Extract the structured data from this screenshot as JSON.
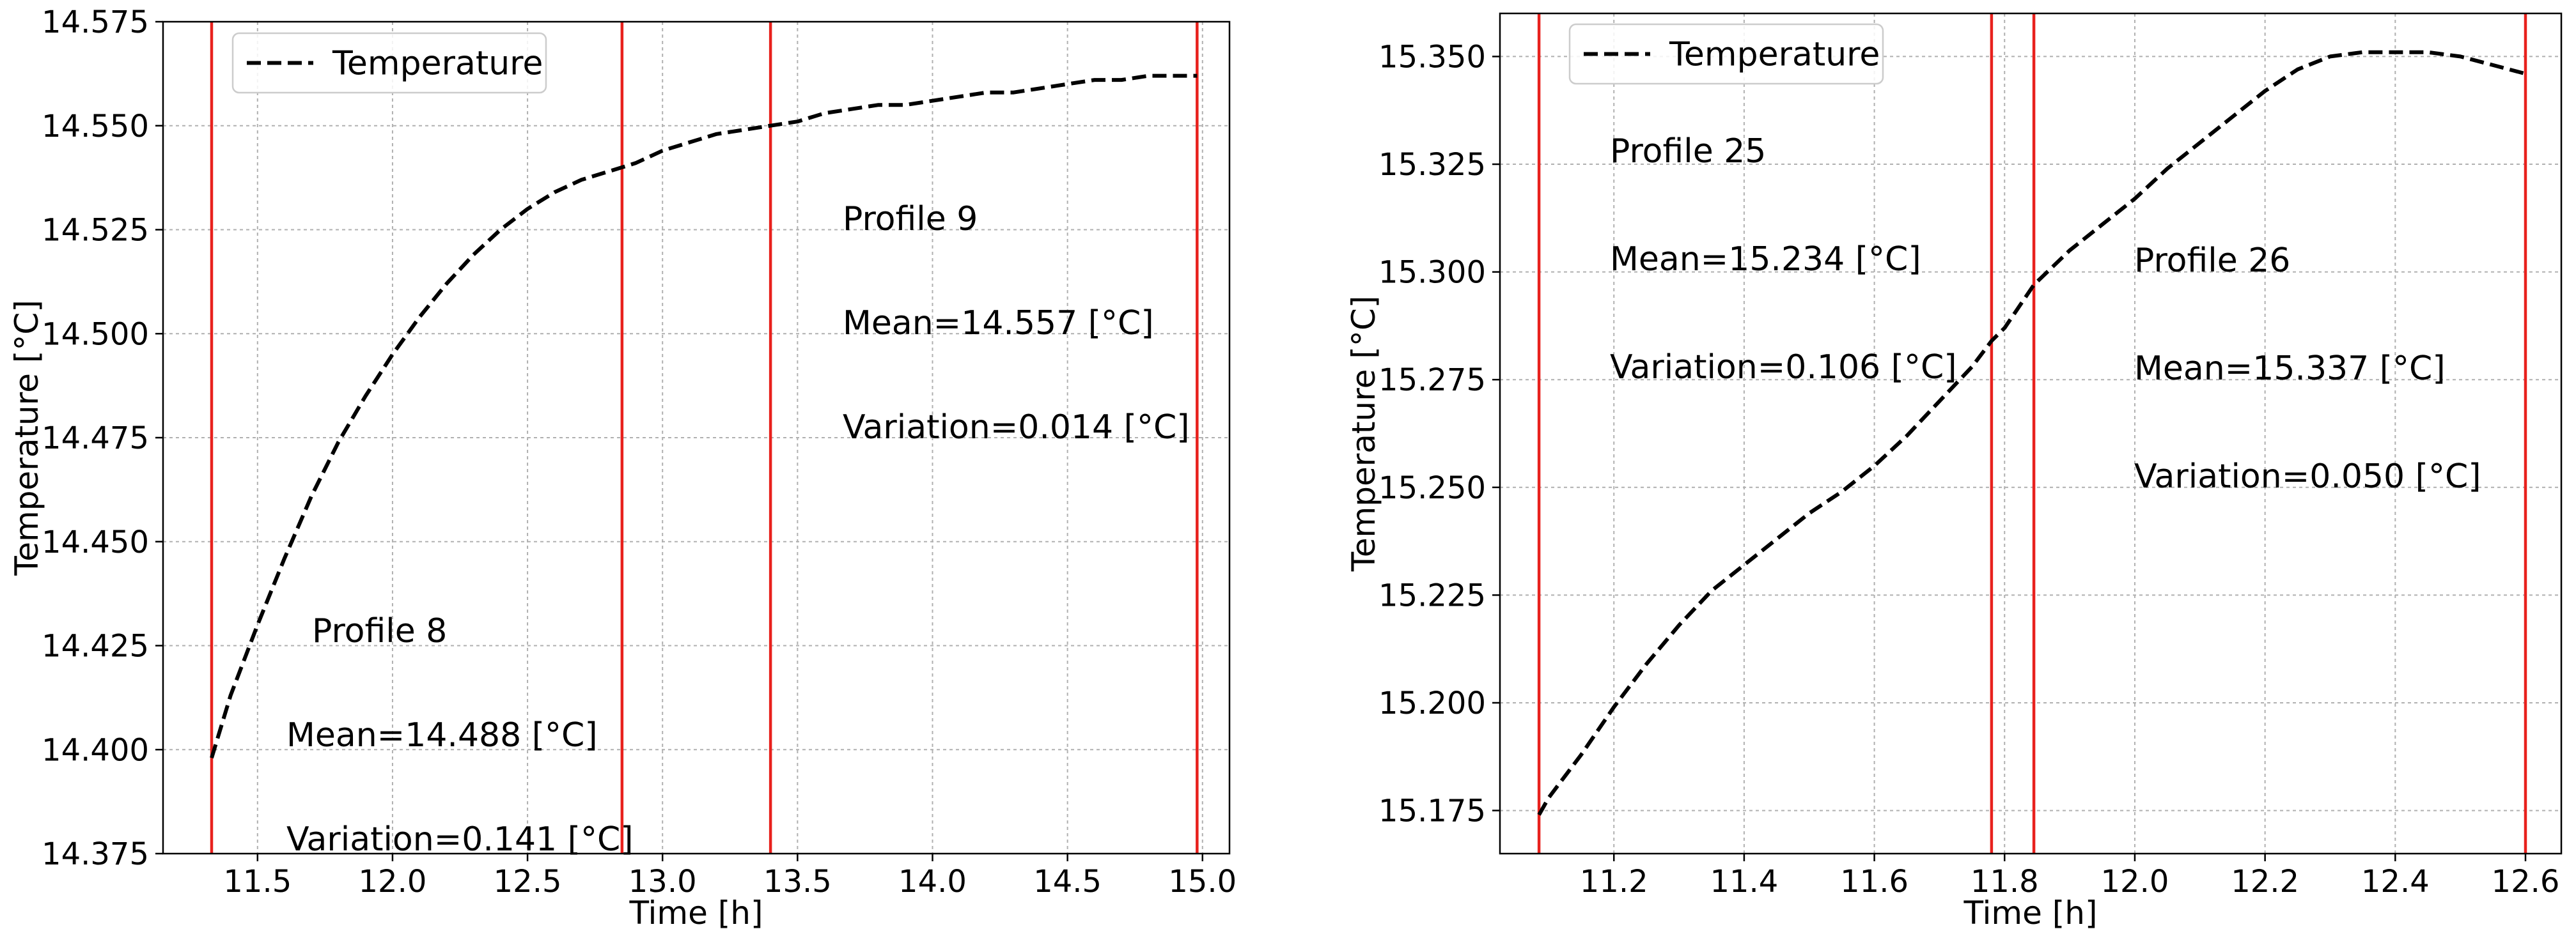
{
  "chart_data": [
    {
      "type": "line",
      "xlabel": "Time [h]",
      "ylabel": "Temperature [°C]",
      "xlim": [
        11.15,
        15.1
      ],
      "ylim": [
        14.375,
        14.575
      ],
      "xticks": [
        11.5,
        12.0,
        12.5,
        13.0,
        13.5,
        14.0,
        14.5,
        15.0
      ],
      "xtick_labels": [
        "11.5",
        "12.0",
        "12.5",
        "13.0",
        "13.5",
        "14.0",
        "14.5",
        "15.0"
      ],
      "yticks": [
        14.375,
        14.4,
        14.425,
        14.45,
        14.475,
        14.5,
        14.525,
        14.55,
        14.575
      ],
      "ytick_labels": [
        "14.375",
        "14.400",
        "14.425",
        "14.450",
        "14.475",
        "14.500",
        "14.525",
        "14.550",
        "14.575"
      ],
      "grid": true,
      "legend": {
        "entries": [
          "Temperature"
        ],
        "location": "upper left"
      },
      "series": [
        {
          "name": "Temperature",
          "style": "dashed",
          "color": "#000000",
          "x": [
            11.33,
            11.4,
            11.5,
            11.6,
            11.7,
            11.8,
            11.9,
            12.0,
            12.1,
            12.2,
            12.3,
            12.4,
            12.5,
            12.6,
            12.7,
            12.8,
            12.85,
            12.9,
            13.0,
            13.1,
            13.2,
            13.3,
            13.4,
            13.5,
            13.6,
            13.7,
            13.8,
            13.9,
            14.0,
            14.1,
            14.2,
            14.3,
            14.4,
            14.5,
            14.6,
            14.7,
            14.8,
            14.9,
            14.98
          ],
          "y": [
            14.398,
            14.413,
            14.43,
            14.446,
            14.461,
            14.474,
            14.485,
            14.495,
            14.504,
            14.512,
            14.519,
            14.525,
            14.53,
            14.534,
            14.537,
            14.539,
            14.54,
            14.541,
            14.544,
            14.546,
            14.548,
            14.549,
            14.55,
            14.551,
            14.553,
            14.554,
            14.555,
            14.555,
            14.556,
            14.557,
            14.558,
            14.558,
            14.559,
            14.56,
            14.561,
            14.561,
            14.562,
            14.562,
            14.562
          ]
        }
      ],
      "vertical_lines": {
        "color": "#e8211d",
        "x": [
          11.33,
          12.85,
          13.4,
          14.98
        ]
      },
      "annotations": [
        {
          "lines": [
            "Profile 8",
            "Mean=14.488 [°C]",
            "Variation=0.141 [°C]"
          ]
        },
        {
          "lines": [
            "Profile 9",
            "Mean=14.557 [°C]",
            "Variation=0.014 [°C]"
          ]
        }
      ]
    },
    {
      "type": "line",
      "xlabel": "Time [h]",
      "ylabel": "Temperature [°C]",
      "xlim": [
        11.025,
        12.655
      ],
      "ylim": [
        15.165,
        15.36
      ],
      "xticks": [
        11.2,
        11.4,
        11.6,
        11.8,
        12.0,
        12.2,
        12.4,
        12.6
      ],
      "xtick_labels": [
        "11.2",
        "11.4",
        "11.6",
        "11.8",
        "12.0",
        "12.2",
        "12.4",
        "12.6"
      ],
      "yticks": [
        15.175,
        15.2,
        15.225,
        15.25,
        15.275,
        15.3,
        15.325,
        15.35
      ],
      "ytick_labels": [
        "15.175",
        "15.200",
        "15.225",
        "15.250",
        "15.275",
        "15.300",
        "15.325",
        "15.350"
      ],
      "grid": true,
      "legend": {
        "entries": [
          "Temperature"
        ],
        "location": "upper left"
      },
      "series": [
        {
          "name": "Temperature",
          "style": "dashed",
          "color": "#000000",
          "x": [
            11.085,
            11.1,
            11.15,
            11.2,
            11.25,
            11.3,
            11.35,
            11.4,
            11.45,
            11.5,
            11.55,
            11.6,
            11.65,
            11.7,
            11.75,
            11.78,
            11.8,
            11.845,
            11.9,
            11.95,
            12.0,
            12.05,
            12.1,
            12.15,
            12.2,
            12.25,
            12.3,
            12.35,
            12.4,
            12.45,
            12.5,
            12.55,
            12.6
          ],
          "y": [
            15.174,
            15.178,
            15.188,
            15.199,
            15.209,
            15.218,
            15.226,
            15.232,
            15.238,
            15.244,
            15.249,
            15.255,
            15.262,
            15.27,
            15.278,
            15.284,
            15.287,
            15.297,
            15.305,
            15.311,
            15.317,
            15.324,
            15.33,
            15.336,
            15.342,
            15.347,
            15.35,
            15.351,
            15.351,
            15.351,
            15.35,
            15.348,
            15.346
          ]
        }
      ],
      "vertical_lines": {
        "color": "#e8211d",
        "x": [
          11.085,
          11.78,
          11.845,
          12.6
        ]
      },
      "annotations": [
        {
          "lines": [
            "Profile 25",
            "Mean=15.234 [°C]",
            "Variation=0.106 [°C]"
          ]
        },
        {
          "lines": [
            "Profile 26",
            "Mean=15.337 [°C]",
            "Variation=0.050 [°C]"
          ]
        }
      ]
    }
  ]
}
